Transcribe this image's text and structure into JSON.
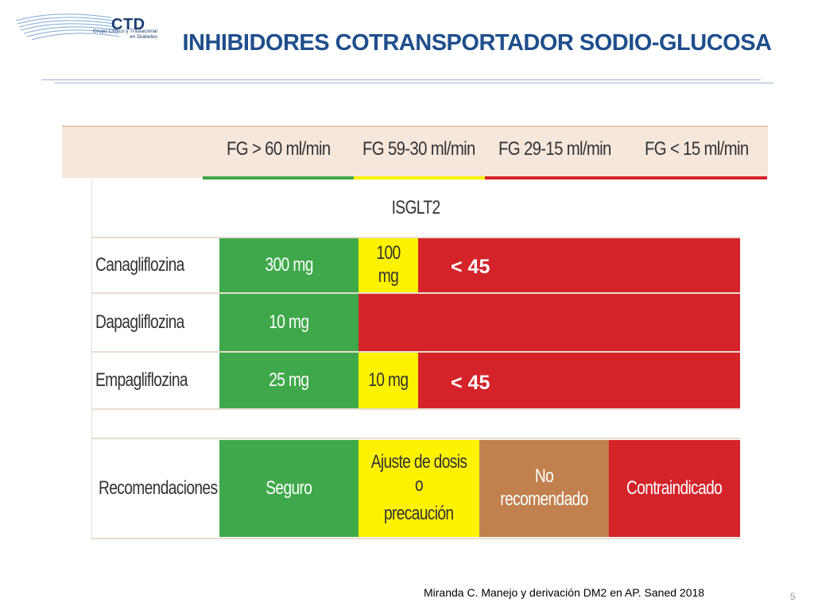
{
  "logo": {
    "name": "CTD",
    "subtitle_line1": "Grupo Clínico y Traslacional",
    "subtitle_line2": "en Diabetes"
  },
  "title": "INHIBIDORES COTRANSPORTADOR SODIO-GLUCOSA",
  "header": {
    "columns": [
      "FG > 60 ml/min",
      "FG 59-30 ml/min",
      "FG 29-15 ml/min",
      "FG < 15 ml/min"
    ]
  },
  "table": {
    "group_label": "ISGLT2",
    "rows": [
      {
        "drug": "Canagliflozina",
        "green": "300 mg",
        "yellow": "100 mg",
        "annotation": "< 45"
      },
      {
        "drug": "Dapagliflozina",
        "green": "10 mg"
      },
      {
        "drug": "Empagliflozina",
        "green": "25 mg",
        "yellow": "10 mg",
        "annotation": "< 45"
      }
    ],
    "recommendations": {
      "label": "Recomendaciones",
      "safe": "Seguro",
      "adjust_line1": "Ajuste de dosis o",
      "adjust_line2": "precaución",
      "not_recommended": "No recomendado",
      "contraindicated": "Contraindicado"
    }
  },
  "citation": "Miranda C. Manejo y derivación DM2 en AP. Saned 2018",
  "page_number": "5",
  "colors": {
    "green": "#3fa84a",
    "yellow": "#fdf200",
    "red": "#d5232a",
    "brown": "#c1804e",
    "title_blue": "#1f4e8c"
  }
}
